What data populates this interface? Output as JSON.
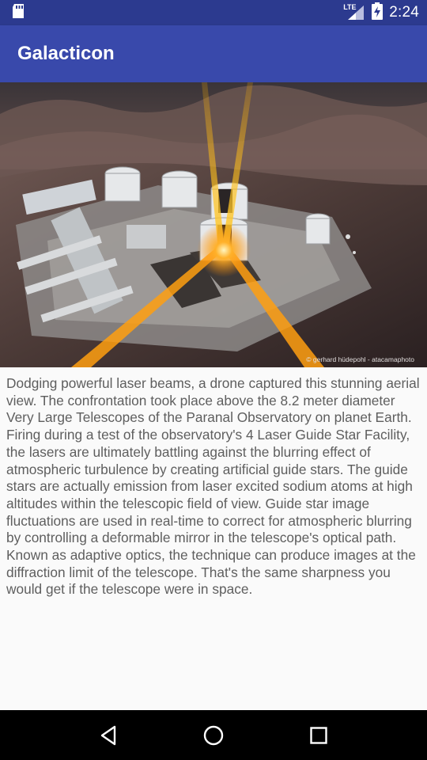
{
  "status_bar": {
    "time": "2:24",
    "network_label": "LTE",
    "icons": [
      "sd-card-icon",
      "signal-icon",
      "battery-charging-icon"
    ],
    "background": "#2c3a8f"
  },
  "app_bar": {
    "title": "Galacticon",
    "background": "#3949ab"
  },
  "hero_image": {
    "subject": "aerial-observatory-lasers",
    "credit": "© gerhard hüdepohl - atacamaphoto"
  },
  "description": "Dodging powerful laser beams, a drone captured this stunning aerial view. The confrontation took place above the 8.2 meter diameter Very Large Telescopes of the Paranal Observatory on planet Earth. Firing during a test of the observatory's 4 Laser Guide Star Facility, the lasers are ultimately battling against the blurring effect of atmospheric turbulence by creating artificial guide stars. The guide stars are actually emission from laser excited sodium atoms at high altitudes within the telescopic field of view. Guide star image fluctuations are used in real-time to correct for atmospheric blurring by controlling a deformable mirror in the telescope's optical path. Known as adaptive optics, the technique can produce images at the diffraction limit of the telescope. That's the same sharpness you would get if the telescope were in space.",
  "nav_bar": {
    "buttons": [
      "back-icon",
      "home-icon",
      "recents-icon"
    ]
  }
}
